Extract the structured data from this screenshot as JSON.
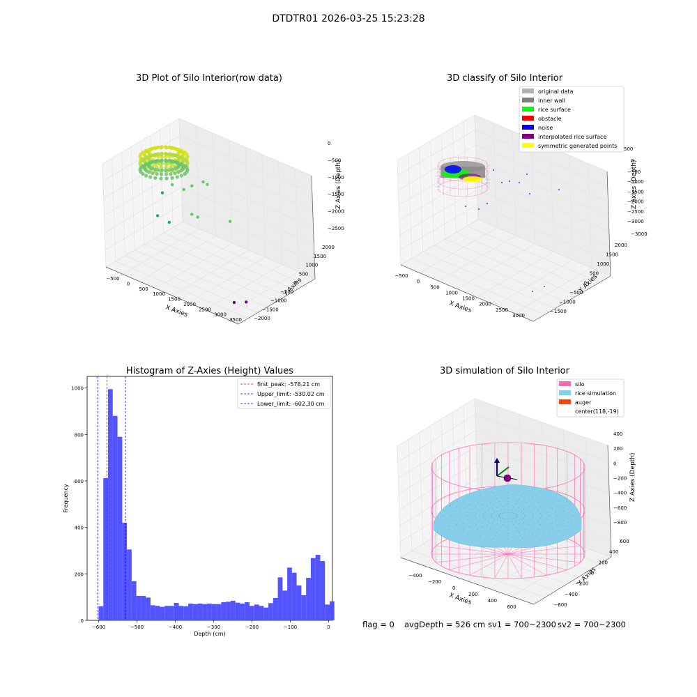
{
  "suptitle": "DTDTR01 2026-03-25 15:23:28",
  "colors": {
    "raw_yellow": "#d4e21a",
    "raw_green": "#6cc46a",
    "raw_teal": "#2f9e7f",
    "raw_purple": "#5a0f6e",
    "hist_bar": "#4b4bff",
    "peak_line": "#ff0000",
    "limit_line": "#0000ff",
    "silo": "#ff69b4",
    "rice_sim": "#87ceeb",
    "auger": "#ff4500",
    "grid": "#e3e3e3",
    "pane": "#f2f2f2"
  },
  "chart_data": [
    {
      "type": "scatter",
      "title": "3D Plot of Silo Interior(row data)",
      "xlabel": "X Axies",
      "ylabel": "Y Axies",
      "zlabel": "Z Axies (Depth)",
      "xticks": [
        "−500",
        "0",
        "500",
        "1000",
        "1500",
        "2000",
        "2500",
        "3000",
        "3500"
      ],
      "yticks": [
        "−2000",
        "−1500",
        "−1000",
        "−500",
        "0",
        "500",
        "1000",
        "1500",
        "2000"
      ],
      "zticks": [
        "0",
        "−500",
        "−1000",
        "−1500",
        "−2000",
        "−2500"
      ],
      "xlim": [
        -600,
        3500
      ],
      "ylim": [
        -2100,
        2100
      ],
      "zlim": [
        -2800,
        100
      ],
      "dense_cluster": {
        "x_range": [
          -500,
          200
        ],
        "y_range": [
          -200,
          300
        ],
        "z_range": [
          -800,
          -100
        ]
      },
      "outliers": [
        {
          "x": 400,
          "y": -100,
          "z": -700,
          "color": "raw_green"
        },
        {
          "x": 700,
          "y": 0,
          "z": -750,
          "color": "raw_green"
        },
        {
          "x": 900,
          "y": 100,
          "z": -600,
          "color": "raw_green"
        },
        {
          "x": 1200,
          "y": 200,
          "z": -400,
          "color": "raw_green"
        },
        {
          "x": 1300,
          "y": 250,
          "z": -450,
          "color": "raw_green"
        },
        {
          "x": 1100,
          "y": -300,
          "z": -1200,
          "color": "raw_green"
        },
        {
          "x": 1400,
          "y": -500,
          "z": -1100,
          "color": "raw_green"
        },
        {
          "x": 2000,
          "y": 200,
          "z": -1200,
          "color": "raw_green"
        },
        {
          "x": 200,
          "y": -600,
          "z": -1500,
          "color": "raw_teal"
        },
        {
          "x": 500,
          "y": -500,
          "z": -1600,
          "color": "raw_teal"
        },
        {
          "x": 200,
          "y": -300,
          "z": -950,
          "color": "raw_teal"
        },
        {
          "x": 3100,
          "y": -1600,
          "z": -2500,
          "color": "raw_purple"
        },
        {
          "x": 3300,
          "y": -1300,
          "z": -2500,
          "color": "raw_purple"
        }
      ]
    },
    {
      "type": "scatter",
      "title": "3D classify of Silo Interior",
      "xlabel": "X Axies",
      "ylabel": "Y Axies",
      "zlabel": "Z Axies (Depth)",
      "xticks": [
        "−500",
        "0",
        "500",
        "1000",
        "1500",
        "2000",
        "2500",
        "3000"
      ],
      "yticks": [
        "−1500",
        "−1000",
        "−500",
        "0",
        "500",
        "1000",
        "1500",
        "2000"
      ],
      "zticks": [
        "−500",
        "−1000",
        "−1500",
        "−2000",
        "−2500",
        "−3000",
        "0"
      ],
      "zticks_partial": [
        "500"
      ],
      "legend": [
        {
          "label": "original data",
          "color": "#b3b3b3"
        },
        {
          "label": "inner wall",
          "color": "#808080"
        },
        {
          "label": "rice surface",
          "color": "#00ff00"
        },
        {
          "label": "obstacle",
          "color": "#ff0000"
        },
        {
          "label": "noise",
          "color": "#0000ff"
        },
        {
          "label": "interpolated rice surface",
          "color": "#800080"
        },
        {
          "label": "symmetric generated points",
          "color": "#ffff00"
        }
      ]
    },
    {
      "type": "bar",
      "title": "Histogram of Z-Axies (Height) Values",
      "xlabel": "Depth (cm)",
      "ylabel": "Frequency",
      "xlim": [
        -630,
        10
      ],
      "ylim": [
        0,
        1050
      ],
      "xticks": [
        -600,
        -500,
        -400,
        -300,
        -200,
        -100,
        0
      ],
      "xtick_labels": [
        "−600",
        "−500",
        "−400",
        "−300",
        "−200",
        "−100",
        "0"
      ],
      "yticks": [
        0,
        200,
        400,
        600,
        800,
        1000
      ],
      "bin_start": -600,
      "bin_width": 12.3,
      "values": [
        60,
        612,
        995,
        880,
        790,
        420,
        305,
        168,
        105,
        105,
        98,
        65,
        62,
        58,
        62,
        62,
        75,
        62,
        60,
        72,
        70,
        72,
        70,
        72,
        70,
        70,
        78,
        80,
        84,
        76,
        72,
        78,
        62,
        68,
        62,
        55,
        74,
        96,
        185,
        128,
        227,
        205,
        150,
        108,
        183,
        268,
        282,
        255,
        68,
        82
      ],
      "vlines": [
        {
          "x": -578.21,
          "label": "first_peak: -578.21 cm",
          "color": "peak_line"
        },
        {
          "x": -530.02,
          "label": "Upper_limit: -530.02 cm",
          "color": "limit_line"
        },
        {
          "x": -602.3,
          "label": "Lower_limit: -602.30 cm",
          "color": "limit_line"
        }
      ]
    },
    {
      "type": "scatter",
      "title": "3D simulation of Silo Interior",
      "xlabel": "X Axies",
      "ylabel": "Y Axies",
      "zlabel": "Z Axies (Depth)",
      "xticks": [
        "−400",
        "−200",
        "0",
        "200",
        "400",
        "600"
      ],
      "yticks": [
        "−600",
        "−400",
        "−200",
        "0",
        "200",
        "400",
        "600"
      ],
      "zticks": [
        "400",
        "200",
        "0",
        "−200",
        "−400",
        "−600",
        "−800"
      ],
      "legend": [
        {
          "label": "silo",
          "color": "#ff69b4"
        },
        {
          "label": "rice simulation",
          "color": "#87ceeb"
        },
        {
          "label": "auger",
          "color": "#ff4500"
        },
        {
          "label": "center(118,-19)",
          "color": ""
        }
      ]
    }
  ],
  "footer": {
    "flag": "flag = 0",
    "avg_depth": "avgDepth = 526 cm",
    "sv1": "sv1 = 700~2300",
    "sv2": "sv2 = 700~2300"
  }
}
